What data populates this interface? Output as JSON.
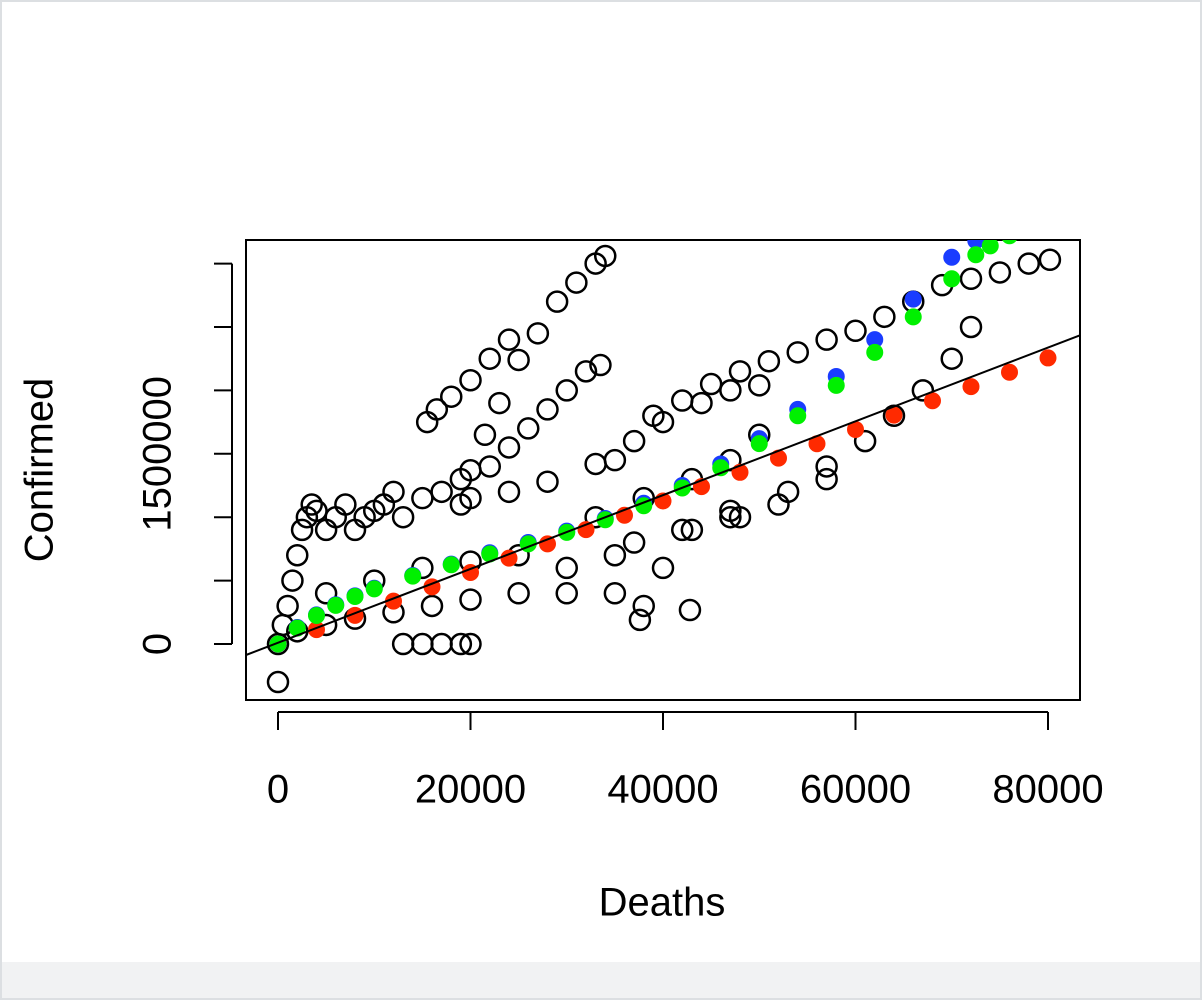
{
  "chart_data": {
    "type": "scatter",
    "x_label": "Deaths",
    "y_label": "Confirmed",
    "xlim": [
      -3325,
      83325
    ],
    "ylim": [
      -441600,
      3186000
    ],
    "xticks": [
      0,
      20000,
      40000,
      60000,
      80000
    ],
    "yticks": [
      0,
      500000,
      1000000,
      1500000,
      2000000,
      2500000,
      3000000
    ],
    "ytick_labels": [
      0,
      1500000
    ],
    "abline": {
      "intercept": 10000,
      "slope": 29.1,
      "color": "#000000"
    },
    "series": [
      {
        "color": "#000000",
        "marker": "open",
        "x": [
          0,
          500,
          1000,
          1500,
          2000,
          2500,
          3000,
          3500,
          4000,
          5000,
          6000,
          7000,
          8000,
          9000,
          10000,
          11000,
          12000,
          13000,
          15000,
          17000,
          19000,
          2000,
          5000,
          8000,
          12000,
          16000,
          20000,
          25000,
          30000,
          35000,
          37600,
          42800,
          13000,
          15000,
          17000,
          19000,
          20000,
          5000,
          10000,
          15000,
          20000,
          25000,
          30000,
          35000,
          15500,
          16500,
          18000,
          20000,
          22000,
          24000,
          19000,
          20000,
          21500,
          23000,
          25000,
          27000,
          29000,
          31000,
          33000,
          34000,
          22000,
          24000,
          26000,
          28000,
          30000,
          32000,
          33500,
          20000,
          24000,
          28000,
          33000,
          35000,
          37000,
          39000,
          42000,
          45000,
          48000,
          51000,
          54000,
          57000,
          60000,
          63000,
          66000,
          69000,
          72000,
          75000,
          78000,
          80200,
          40000,
          44000,
          47000,
          50000,
          33000,
          38000,
          43000,
          47000,
          50000,
          37000,
          42000,
          47000,
          52000,
          57000,
          38000,
          40000,
          43000,
          47000,
          48000,
          53000,
          57000,
          61000,
          64000,
          67000,
          70000,
          72000,
          0
        ],
        "y": [
          0,
          150000,
          300000,
          500000,
          700000,
          900000,
          1000000,
          1100000,
          1050000,
          900000,
          1000000,
          1100000,
          900000,
          1000000,
          1050000,
          1100000,
          1200000,
          1000000,
          1150000,
          1200000,
          1300000,
          100000,
          150000,
          200000,
          250000,
          300000,
          350000,
          400000,
          400000,
          400000,
          190000,
          268000,
          0,
          0,
          0,
          0,
          0,
          400000,
          500000,
          600000,
          650000,
          700000,
          600000,
          700000,
          1750000,
          1850000,
          1950000,
          2080000,
          2250000,
          2400000,
          1100000,
          1370000,
          1650000,
          1900000,
          2240000,
          2450000,
          2700000,
          2850000,
          3000000,
          3060000,
          1400000,
          1550000,
          1700000,
          1850000,
          2000000,
          2150000,
          2200000,
          1150000,
          1200000,
          1280000,
          1420000,
          1450000,
          1600000,
          1800000,
          1920000,
          2050000,
          2150000,
          2230000,
          2300000,
          2400000,
          2470000,
          2580000,
          2700000,
          2830000,
          2880000,
          2930000,
          3000000,
          3030000,
          1750000,
          1900000,
          2000000,
          2040000,
          1000000,
          1150000,
          1300000,
          1450000,
          1650000,
          800000,
          900000,
          1000000,
          1100000,
          1300000,
          300000,
          600000,
          900000,
          1050000,
          1000000,
          1200000,
          1400000,
          1600000,
          1800000,
          2000000,
          2250000,
          2500000,
          -300000
        ]
      },
      {
        "color": "#ff2a00",
        "marker": "filled",
        "x": [
          0,
          4000,
          8000,
          12000,
          16000,
          20000,
          24000,
          28000,
          32000,
          36000,
          40000,
          44000,
          48000,
          52000,
          56000,
          60000,
          64000,
          68000,
          72000,
          76000,
          80000
        ],
        "y": [
          0,
          113000,
          226000,
          338000,
          451000,
          564000,
          677000,
          790000,
          902000,
          1015000,
          1128000,
          1241000,
          1354000,
          1466000,
          1579000,
          1692000,
          1805000,
          1918000,
          2030000,
          2143000,
          2256000
        ]
      },
      {
        "color": "#1a3cff",
        "marker": "filled",
        "x": [
          0,
          2000,
          4000,
          6000,
          8000,
          10000,
          14000,
          18000,
          22000,
          26000,
          30000,
          34000,
          38000,
          42000,
          46000,
          50000,
          54000,
          58000,
          62000,
          66000,
          70000,
          72500
        ],
        "y": [
          0,
          130000,
          230000,
          310000,
          380000,
          440000,
          540000,
          630000,
          720000,
          800000,
          890000,
          990000,
          1110000,
          1250000,
          1420000,
          1620000,
          1850000,
          2110000,
          2400000,
          2720000,
          3050000,
          3180000
        ]
      },
      {
        "color": "#00f000",
        "marker": "filled",
        "x": [
          0,
          2000,
          4000,
          6000,
          8000,
          10000,
          14000,
          18000,
          22000,
          26000,
          30000,
          34000,
          38000,
          42000,
          46000,
          50000,
          54000,
          58000,
          62000,
          66000,
          70000,
          72500,
          74000,
          76000
        ],
        "y": [
          0,
          125000,
          225000,
          305000,
          375000,
          435000,
          535000,
          625000,
          710000,
          790000,
          880000,
          980000,
          1090000,
          1230000,
          1390000,
          1580000,
          1800000,
          2040000,
          2300000,
          2580000,
          2880000,
          3070000,
          3140000,
          3220000
        ]
      }
    ]
  }
}
